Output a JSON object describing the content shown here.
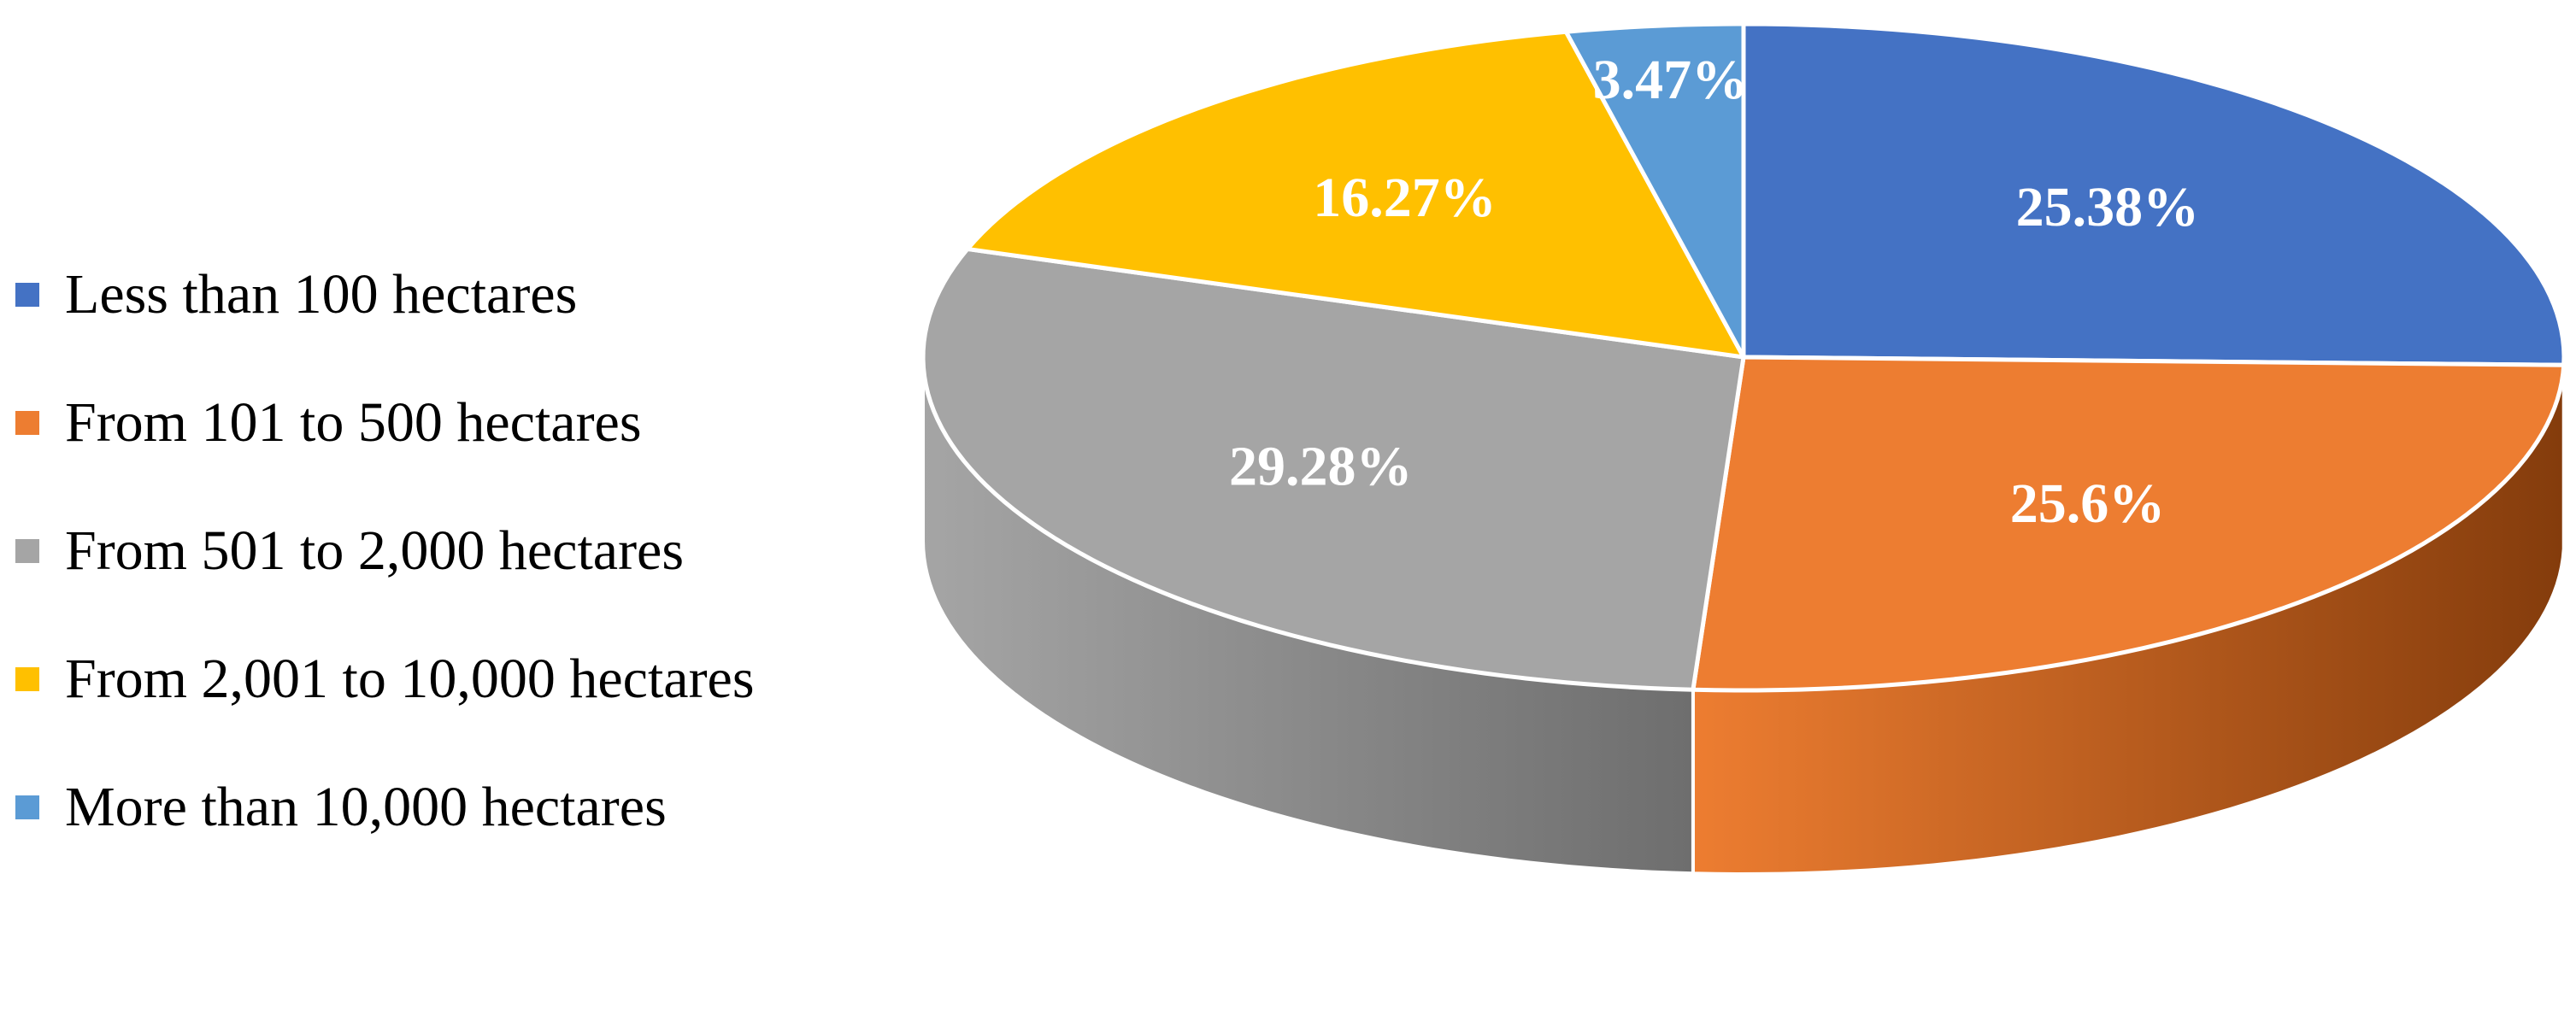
{
  "chart_data": {
    "type": "pie",
    "title": "",
    "three_d": true,
    "legend_position": "left",
    "slices": [
      {
        "label": "Less than 100 hectares",
        "value": 25.38,
        "display": "25.38%",
        "color": "#4472C4",
        "side_color": "#2F5597"
      },
      {
        "label": "From 101 to 500 hectares",
        "value": 25.6,
        "display": "25.6%",
        "color": "#ED7D31",
        "side_color": "#843C0C"
      },
      {
        "label": "From 501 to 2,000 hectares",
        "value": 29.28,
        "display": "29.28%",
        "color": "#A5A5A5",
        "side_color": "#6E6E6E"
      },
      {
        "label": "From 2,001 to 10,000 hectares",
        "value": 16.27,
        "display": "16.27%",
        "color": "#FFC000",
        "side_color": "#9C7400"
      },
      {
        "label": "More than 10,000 hectares",
        "value": 3.47,
        "display": "3.47%",
        "color": "#5B9BD5",
        "side_color": "#2E6A9E"
      }
    ]
  }
}
